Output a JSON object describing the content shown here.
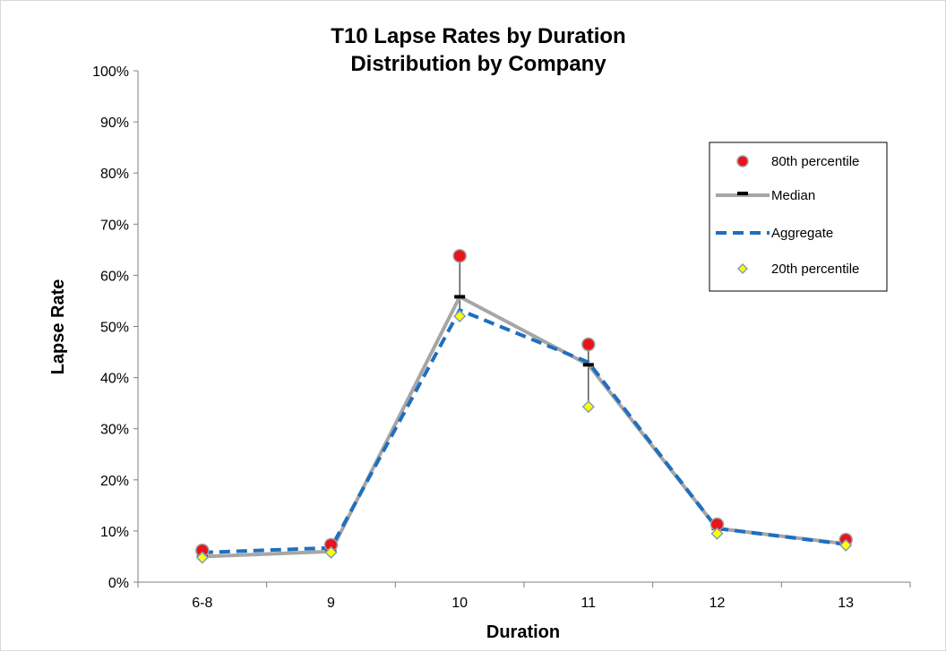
{
  "chart_data": {
    "type": "line",
    "title_lines": [
      "T10 Lapse Rates by Duration",
      "Distribution by Company"
    ],
    "xlabel": "Duration",
    "ylabel": "Lapse Rate",
    "categories": [
      "6-8",
      "9",
      "10",
      "11",
      "12",
      "13"
    ],
    "ylim": [
      0,
      1
    ],
    "y_ticks": [
      "0%",
      "10%",
      "20%",
      "30%",
      "40%",
      "50%",
      "60%",
      "70%",
      "80%",
      "90%",
      "100%"
    ],
    "grid": false,
    "legend_position": "top-right",
    "series": [
      {
        "name": "80th percentile",
        "kind": "marker-circle",
        "color": "#e8141c",
        "edge": "#a0a0a0",
        "values": [
          0.062,
          0.073,
          0.638,
          0.465,
          0.113,
          0.083
        ]
      },
      {
        "name": "Median",
        "kind": "line-solid",
        "color": "#a6a6a6",
        "marker_color": "#000000",
        "values": [
          0.05,
          0.06,
          0.558,
          0.425,
          0.105,
          0.075
        ]
      },
      {
        "name": "Aggregate",
        "kind": "line-dashed",
        "color": "#1f6fbf",
        "values": [
          0.058,
          0.067,
          0.532,
          0.43,
          0.105,
          0.074
        ]
      },
      {
        "name": "20th percentile",
        "kind": "marker-diamond",
        "color": "#ffff00",
        "edge": "#7f9fbf",
        "values": [
          0.048,
          0.058,
          0.52,
          0.343,
          0.095,
          0.072
        ]
      }
    ]
  }
}
